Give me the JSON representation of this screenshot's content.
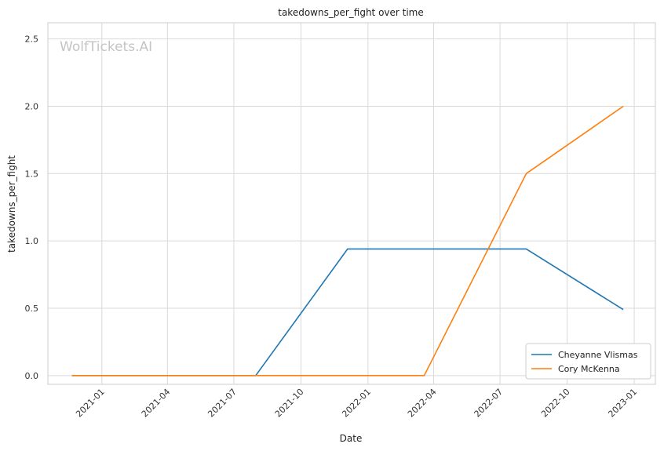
{
  "chart_data": {
    "type": "line",
    "title": "takedowns_per_fight over time",
    "xlabel": "Date",
    "ylabel": "takedowns_per_fight",
    "watermark": "WolfTickets.AI",
    "x_ticks": [
      "2021-01",
      "2021-04",
      "2021-07",
      "2021-10",
      "2022-01",
      "2022-04",
      "2022-07",
      "2022-10",
      "2023-01"
    ],
    "y_ticks": [
      "0.0",
      "0.5",
      "1.0",
      "1.5",
      "2.0",
      "2.5"
    ],
    "xlim": [
      "2020-10-19",
      "2023-01-30"
    ],
    "ylim": [
      -0.065,
      2.62
    ],
    "grid": true,
    "legend_position": "bottom-right",
    "series": [
      {
        "name": "Cheyanne Vlismas",
        "color": "#1f77b4",
        "points": [
          {
            "x": "2020-11-21",
            "y": 0.0
          },
          {
            "x": "2021-07-31",
            "y": 0.0
          },
          {
            "x": "2021-12-04",
            "y": 0.94
          },
          {
            "x": "2022-08-06",
            "y": 0.94
          },
          {
            "x": "2022-12-17",
            "y": 0.49
          }
        ]
      },
      {
        "name": "Cory McKenna",
        "color": "#ff7f0e",
        "points": [
          {
            "x": "2020-11-21",
            "y": 0.0
          },
          {
            "x": "2022-03-19",
            "y": 0.0
          },
          {
            "x": "2022-08-06",
            "y": 1.5
          },
          {
            "x": "2022-12-17",
            "y": 2.0
          }
        ]
      }
    ]
  }
}
